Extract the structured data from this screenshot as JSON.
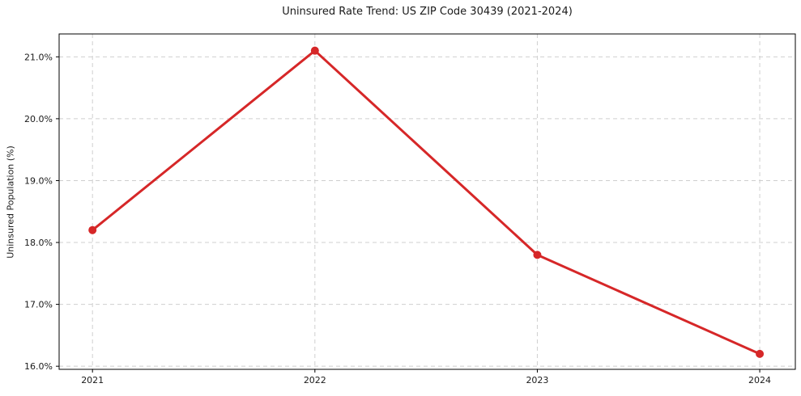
{
  "chart_data": {
    "type": "line",
    "title": "Uninsured Rate Trend: US ZIP Code 30439 (2021-2024)",
    "xlabel": "",
    "ylabel": "Uninsured Population (%)",
    "x": [
      2021,
      2022,
      2023,
      2024
    ],
    "series": [
      {
        "name": "uninsured_rate",
        "values": [
          18.2,
          21.1,
          17.8,
          16.2
        ]
      }
    ],
    "xticks": {
      "values": [
        2021,
        2022,
        2023,
        2024
      ],
      "labels": [
        "2021",
        "2022",
        "2023",
        "2024"
      ]
    },
    "yticks": {
      "values": [
        16,
        17,
        18,
        19,
        20,
        21
      ],
      "labels": [
        "16.0%",
        "17.0%",
        "18.0%",
        "19.0%",
        "20.0%",
        "21.0%"
      ]
    },
    "xlim": [
      2020.85,
      2024.16
    ],
    "ylim": [
      15.95,
      21.37
    ],
    "grid": true,
    "grid_style": "dashed",
    "legend_position": "none",
    "line_color": "#d62728",
    "marker": "circle",
    "grid_color": "#cfcfcf",
    "spine_color": "#000000",
    "text_color": "#1a1a1a"
  }
}
